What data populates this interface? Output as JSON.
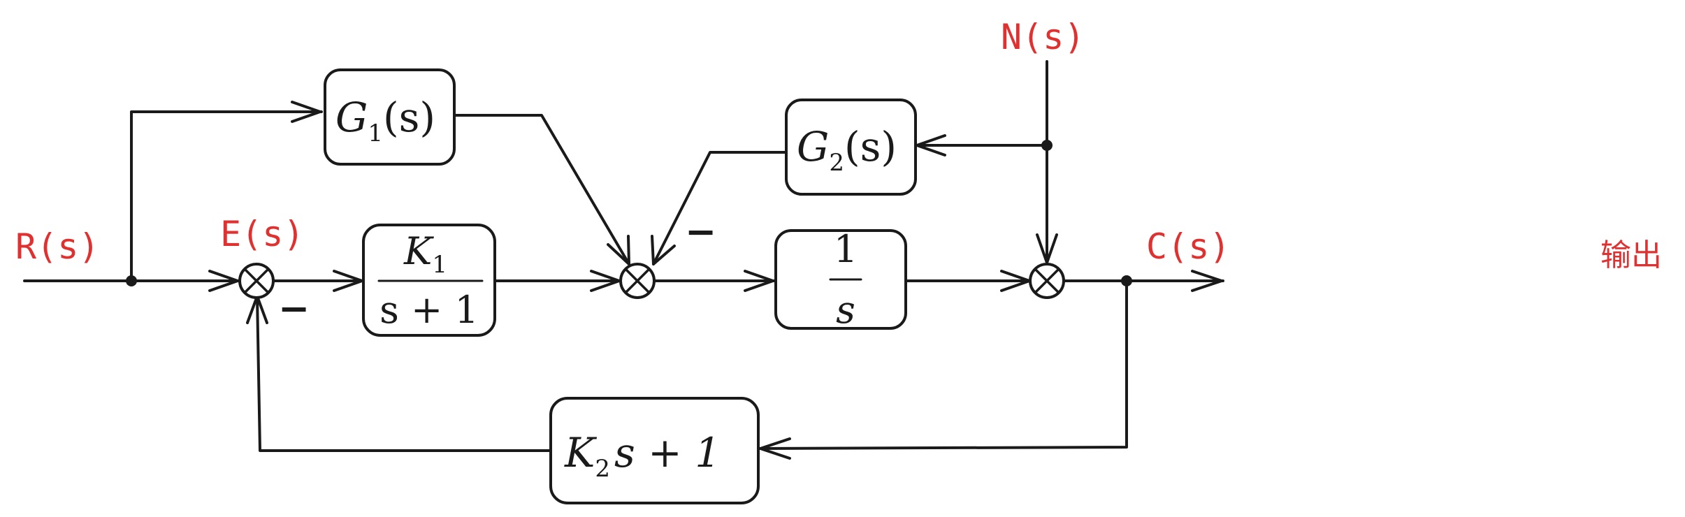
{
  "signals": {
    "R": "R(s)",
    "E": "E(s)",
    "N": "N(s)",
    "C": "C(s)",
    "output_label": "输出"
  },
  "blocks": {
    "G1": {
      "name": "G",
      "sub": "1",
      "arg": "(s)"
    },
    "G2": {
      "name": "G",
      "sub": "2",
      "arg": "(s)"
    },
    "K1": {
      "numerator": "K",
      "numerator_sub": "1",
      "denominator": "s + 1"
    },
    "integrator": {
      "numerator": "1",
      "denominator": "s"
    },
    "feedback": {
      "name": "K",
      "sub": "2",
      "rest": "s + 1"
    }
  },
  "signs": {
    "sum1_feedback": "−",
    "sum2_G2": "−"
  },
  "colors": {
    "signal_label": "#e03131",
    "line": "#1a1a1a"
  }
}
